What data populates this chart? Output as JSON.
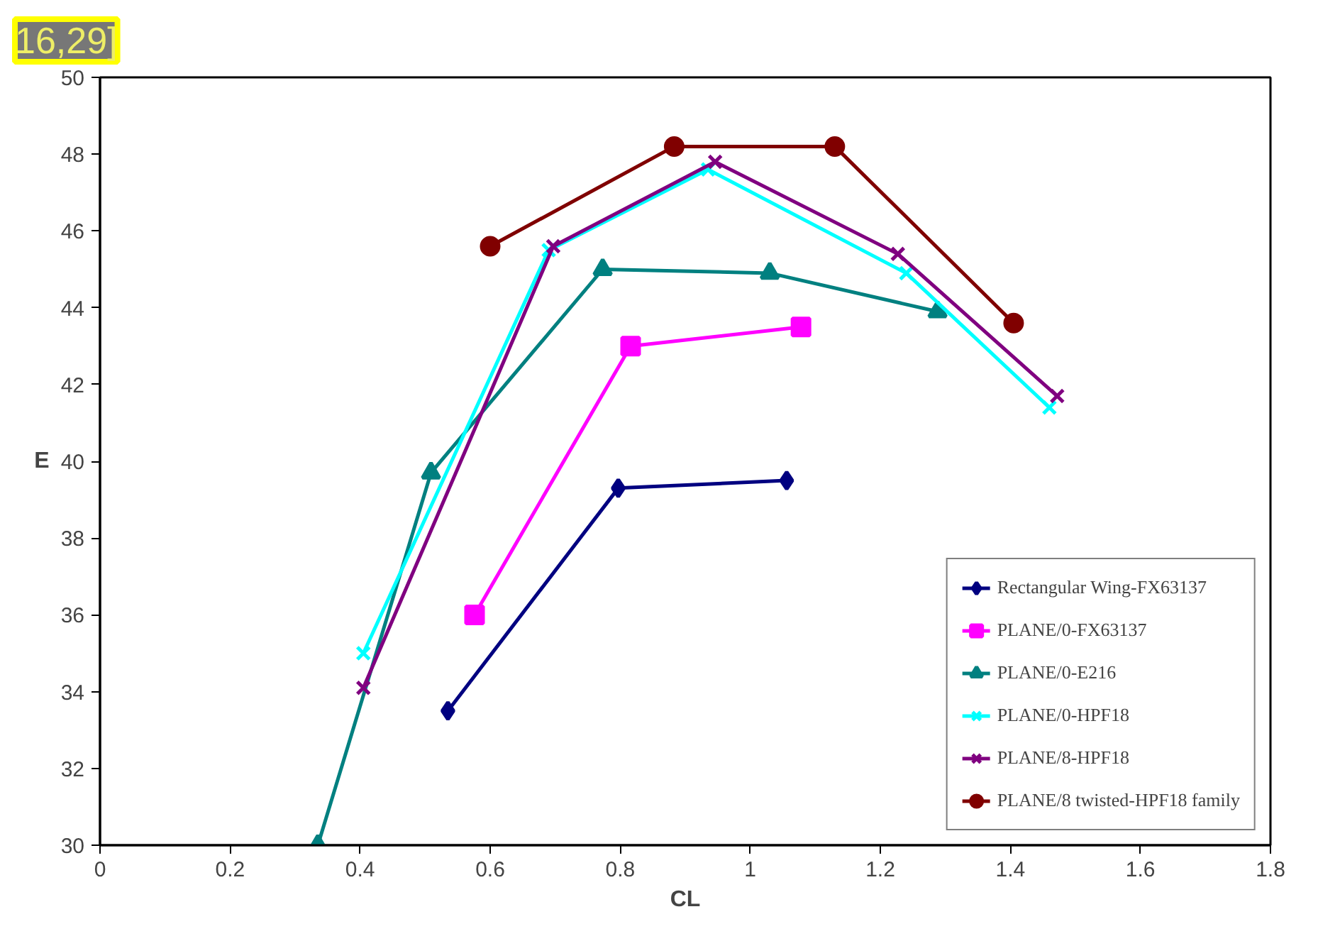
{
  "chart_data": {
    "type": "line",
    "xlabel": "CL",
    "ylabel": "E",
    "annotations": [
      "16,29]"
    ],
    "xlim": [
      0,
      1.8
    ],
    "ylim": [
      30,
      50
    ],
    "xticks": [
      0,
      {
        "value": 0.2,
        "label": "0.2"
      },
      {
        "value": 0.4,
        "label": "0.4"
      },
      {
        "value": 0.6,
        "label": "0.6"
      },
      {
        "value": 0.8,
        "label": "0.8"
      },
      1,
      {
        "value": 1.2,
        "label": "1.2"
      },
      {
        "value": 1.4,
        "label": "1.4"
      },
      {
        "value": 1.6,
        "label": "1.6"
      },
      {
        "value": 1.8,
        "label": "1.8"
      }
    ],
    "yticks": [
      30,
      32,
      34,
      36,
      38,
      40,
      42,
      44,
      46,
      48,
      50
    ],
    "grid": false,
    "legend": "bottom right",
    "line_style": "solid",
    "series": [
      {
        "name": "Rectangular Wing-FX63137",
        "color": "#000080",
        "marker": "diamond",
        "x": [
          0.535,
          0.797,
          1.056
        ],
        "values": [
          33.5,
          39.3,
          39.5
        ]
      },
      {
        "name": "PLANE/0-FX63137",
        "color": "#ff00ff",
        "marker": "square",
        "x": [
          0.576,
          0.816,
          1.078
        ],
        "values": [
          36.0,
          43.0,
          43.5
        ]
      },
      {
        "name": "PLANE/0-E216",
        "color": "#008080",
        "marker": "triangle",
        "x": [
          0.335,
          0.509,
          0.773,
          1.03,
          1.288
        ],
        "values": [
          30.0,
          39.7,
          45.0,
          44.9,
          43.9
        ]
      },
      {
        "name": "PLANE/0-HPF18",
        "color": "#00ffff",
        "marker": "cross",
        "x": [
          0.405,
          0.69,
          0.935,
          1.24,
          1.46
        ],
        "values": [
          35.0,
          45.5,
          47.6,
          44.9,
          41.4
        ]
      },
      {
        "name": "PLANE/8-HPF18",
        "color": "#800080",
        "marker": "cross",
        "x": [
          0.405,
          0.697,
          0.946,
          1.227,
          1.472
        ],
        "values": [
          34.1,
          45.6,
          47.8,
          45.4,
          41.7
        ]
      },
      {
        "name": "PLANE/8 twisted-HPF18 family",
        "color": "#800000",
        "marker": "circle",
        "x": [
          0.6,
          0.883,
          1.13,
          1.405
        ],
        "values": [
          45.6,
          48.2,
          48.2,
          43.6
        ]
      }
    ]
  }
}
